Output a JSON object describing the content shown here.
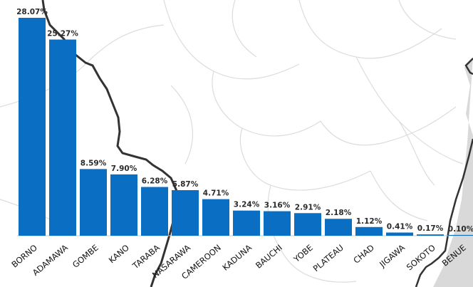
{
  "chart_data": {
    "type": "bar",
    "categories": [
      "BORNO",
      "ADAMAWA",
      "GOMBE",
      "KANO",
      "TARABA",
      "NASARAWA",
      "CAMEROON",
      "KADUNA",
      "BAUCHI",
      "YOBE",
      "PLATEAU",
      "CHAD",
      "JIGAWA",
      "SOKOTO",
      "BENUE"
    ],
    "values": [
      28.07,
      25.27,
      8.59,
      7.9,
      6.28,
      5.87,
      4.71,
      3.24,
      3.16,
      2.91,
      2.18,
      1.12,
      0.41,
      0.17,
      0.1
    ],
    "value_labels": [
      "28.07%",
      "25.27%",
      "8.59%",
      "7.90%",
      "6.28%",
      "5.87%",
      "4.71%",
      "3.24%",
      "3.16%",
      "2.91%",
      "2.18%",
      "1.12%",
      "0.41%",
      "0.17%",
      "0.10%"
    ],
    "ylim": [
      0,
      28.07
    ],
    "bar_color": "#0a6fc2",
    "grid": false,
    "legend": "none"
  },
  "background": {
    "map_road_color": "#dcdcdc",
    "map_border_color": "#333333",
    "neighbor_fill": "#d9d9d9"
  }
}
